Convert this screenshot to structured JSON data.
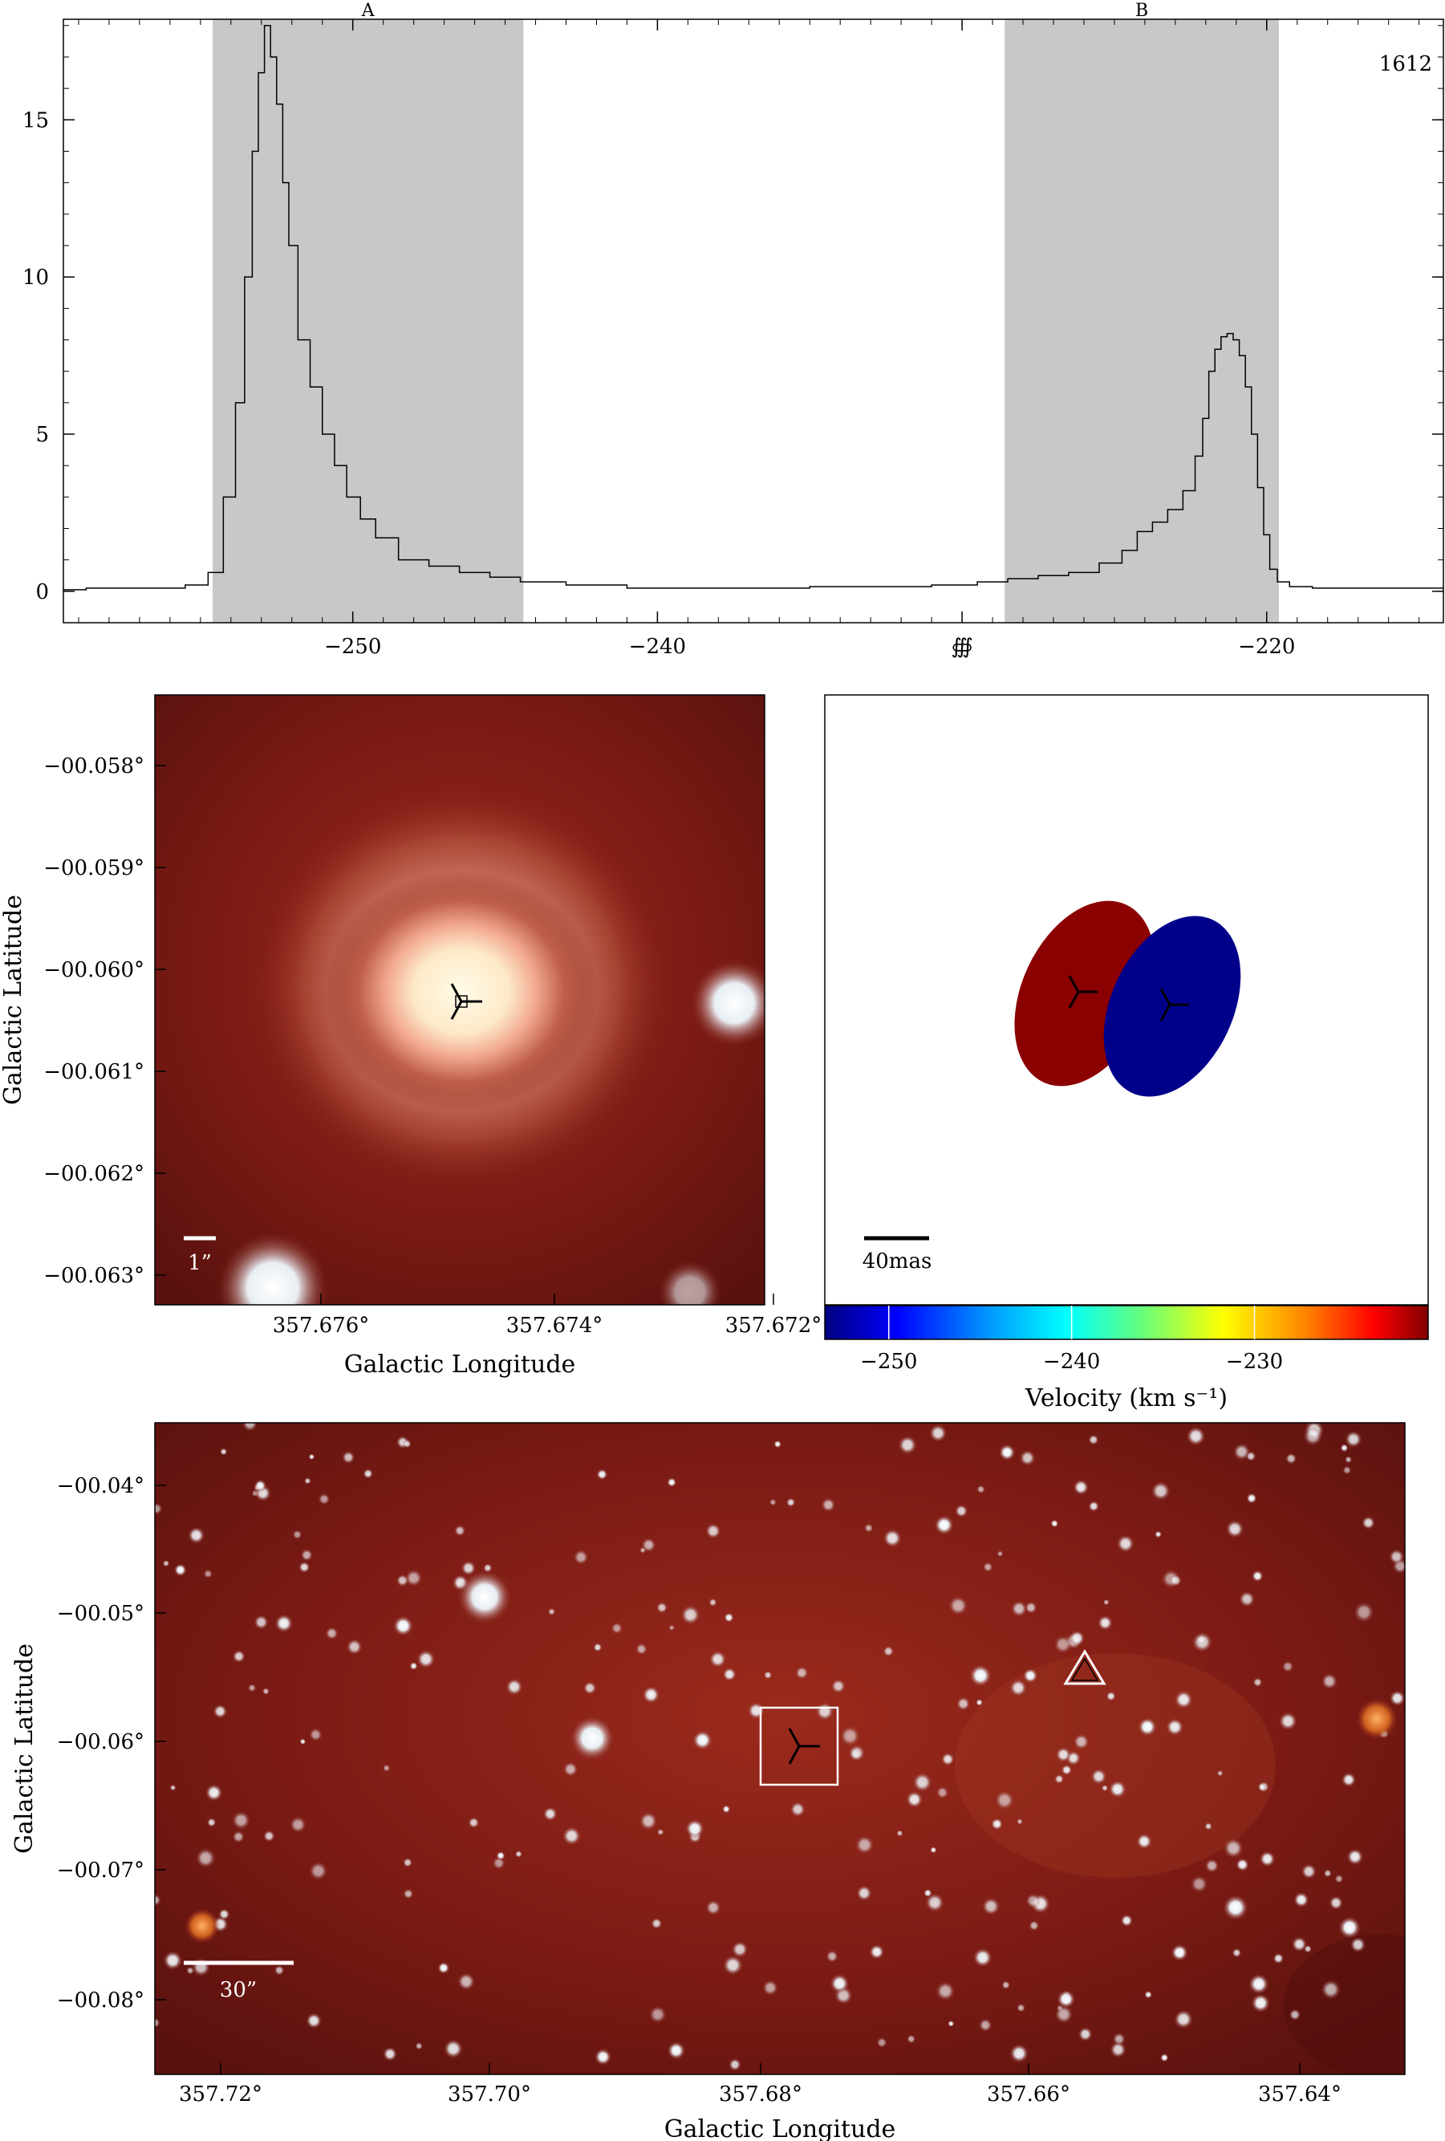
{
  "chart_data": [
    {
      "type": "line",
      "title": "",
      "xlabel": "",
      "ylabel": "",
      "xlim": [
        -259.5,
        -214.2
      ],
      "ylim": [
        -1,
        18.2
      ],
      "x_ticks": [
        -250,
        -240,
        -230,
        -220
      ],
      "y_ticks": [
        0,
        5,
        10,
        15
      ],
      "x_tick_labels": [
        "−250",
        "−240",
        "∰",
        "−220"
      ],
      "y_tick_labels": [
        "0",
        "5",
        "10",
        "15"
      ],
      "corner_label": "1612",
      "regions": [
        {
          "label": "A",
          "x_start": -254.6,
          "x_end": -244.4
        },
        {
          "label": "B",
          "x_start": -228.6,
          "x_end": -219.6
        }
      ],
      "series": [
        {
          "x": [
            -259.5,
            -258,
            -256,
            -255,
            -254.5,
            -254,
            -253.7,
            -253.4,
            -253.2,
            -253,
            -252.8,
            -252.6,
            -252.4,
            -252.2,
            -252,
            -251.6,
            -251.2,
            -250.8,
            -250.4,
            -250,
            -249.5,
            -249,
            -248,
            -247,
            -246,
            -245,
            -244,
            -242,
            -240,
            -238,
            -236,
            -234,
            -232,
            -230,
            -229,
            -228,
            -227,
            -226,
            -225,
            -224.5,
            -224,
            -223.5,
            -223,
            -222.5,
            -222.2,
            -222,
            -221.8,
            -221.6,
            -221.4,
            -221.2,
            -221,
            -220.8,
            -220.6,
            -220.4,
            -220.2,
            -220,
            -219.8,
            -219.5,
            -219,
            -218,
            -216,
            -214.2
          ],
          "y": [
            0.05,
            0.1,
            0.1,
            0.2,
            0.6,
            3,
            6,
            10,
            14,
            16.5,
            18,
            17,
            15.5,
            13,
            11,
            8,
            6.5,
            5,
            4,
            3,
            2.3,
            1.7,
            1.0,
            0.8,
            0.6,
            0.45,
            0.3,
            0.2,
            0.1,
            0.1,
            0.1,
            0.15,
            0.15,
            0.2,
            0.3,
            0.4,
            0.5,
            0.6,
            0.9,
            1.3,
            1.9,
            2.2,
            2.6,
            3.2,
            4.3,
            5.5,
            7,
            7.7,
            8.1,
            8.2,
            8.0,
            7.5,
            6.5,
            5.0,
            3.3,
            1.8,
            0.7,
            0.3,
            0.15,
            0.1,
            0.1,
            0.1
          ]
        }
      ]
    },
    {
      "type": "heatmap",
      "title": "",
      "xlabel": "Galactic Longitude",
      "ylabel": "Galactic Latitude",
      "x_tick_labels": [
        "357.676°",
        "357.674°",
        "357.672°"
      ],
      "y_tick_labels": [
        "−00.058°",
        "−00.059°",
        "−00.060°",
        "−00.061°",
        "−00.062°",
        "−00.063°"
      ],
      "scalebar_label": "1”",
      "source_marker": {
        "l": 357.6749,
        "b": -0.06032
      }
    },
    {
      "type": "scatter",
      "title": "",
      "scalebar_label": "40mas",
      "colorbar": {
        "label": "Velocity (km s⁻¹)",
        "tick_labels": [
          "−250",
          "−240",
          "−230"
        ],
        "ticks": [
          -250,
          -240,
          -230
        ],
        "range": [
          -253.5,
          -220.5
        ],
        "colors": [
          "#000080",
          "#0000ff",
          "#00a0ff",
          "#00ffff",
          "#60ff80",
          "#ffff00",
          "#ff8000",
          "#ff0000",
          "#800000"
        ]
      },
      "spots": [
        {
          "label": "red-feature",
          "velocity": -221.5,
          "color": "#8b0000"
        },
        {
          "label": "blue-feature",
          "velocity": -252.8,
          "color": "#00008b"
        }
      ]
    },
    {
      "type": "heatmap",
      "title": "",
      "xlabel": "Galactic Longitude",
      "ylabel": "Galactic Latitude",
      "x_tick_labels": [
        "357.72°",
        "357.70°",
        "357.68°",
        "357.66°",
        "357.64°"
      ],
      "y_tick_labels": [
        "−00.04°",
        "−00.05°",
        "−00.06°",
        "−00.07°",
        "−00.08°"
      ],
      "scalebar_label": "30”"
    }
  ]
}
